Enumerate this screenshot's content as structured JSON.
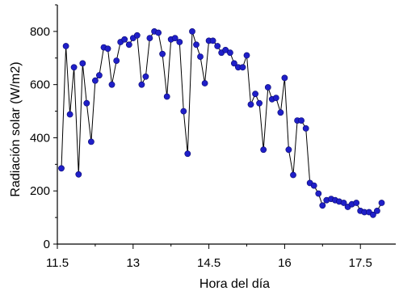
{
  "chart_data": {
    "type": "line",
    "xlabel": "Hora del día",
    "ylabel": "Radiación solar (W/m2)",
    "xlim": [
      11.5,
      18.2
    ],
    "ylim": [
      0,
      900
    ],
    "x_ticks": [
      "11.5",
      "13",
      "14.5",
      "16",
      "17.5"
    ],
    "y_ticks": [
      "0",
      "200",
      "400",
      "600",
      "800"
    ],
    "grid": false,
    "legend": "none",
    "colors": {
      "marker": "#1f1fc8",
      "line": "#000000",
      "axis": "#000000"
    },
    "series": [
      {
        "x": [
          11.58,
          11.67,
          11.75,
          11.83,
          11.92,
          12.0,
          12.08,
          12.17,
          12.25,
          12.33,
          12.42,
          12.5,
          12.58,
          12.67,
          12.75,
          12.83,
          12.92,
          13.0,
          13.08,
          13.17,
          13.25,
          13.33,
          13.42,
          13.5,
          13.58,
          13.67,
          13.75,
          13.83,
          13.92,
          14.0,
          14.08,
          14.17,
          14.25,
          14.33,
          14.42,
          14.5,
          14.58,
          14.67,
          14.75,
          14.83,
          14.92,
          15.0,
          15.08,
          15.17,
          15.25,
          15.33,
          15.42,
          15.5,
          15.58,
          15.67,
          15.75,
          15.83,
          15.92,
          16.0,
          16.08,
          16.17,
          16.25,
          16.33,
          16.42,
          16.5,
          16.58,
          16.67,
          16.75,
          16.83,
          16.92,
          17.0,
          17.08,
          17.17,
          17.25,
          17.33,
          17.42,
          17.5,
          17.58,
          17.67,
          17.75,
          17.83,
          17.92
        ],
        "y": [
          285,
          745,
          488,
          665,
          262,
          680,
          530,
          385,
          615,
          635,
          740,
          735,
          600,
          690,
          760,
          770,
          750,
          775,
          785,
          600,
          630,
          775,
          800,
          795,
          715,
          555,
          770,
          775,
          760,
          500,
          340,
          800,
          750,
          705,
          605,
          765,
          765,
          745,
          720,
          730,
          720,
          680,
          665,
          665,
          710,
          525,
          565,
          530,
          355,
          590,
          545,
          550,
          495,
          625,
          355,
          260,
          465,
          465,
          435,
          230,
          220,
          190,
          145,
          165,
          170,
          165,
          160,
          155,
          140,
          150,
          155,
          125,
          120,
          120,
          110,
          125,
          155
        ]
      }
    ]
  }
}
